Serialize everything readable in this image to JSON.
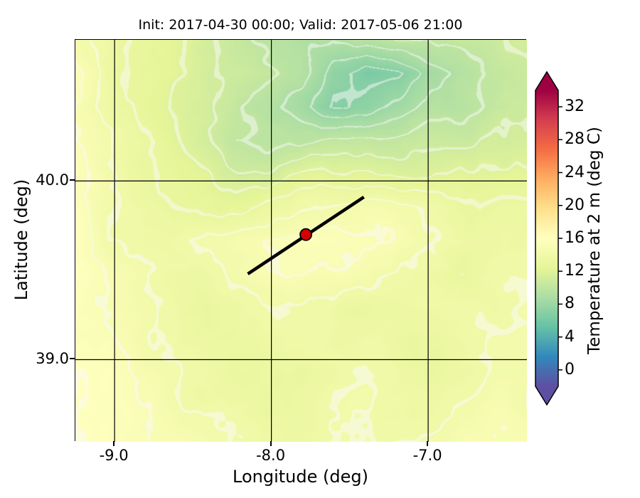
{
  "chart_data": {
    "type": "heatmap",
    "title": "Init: 2017-04-30 00:00; Valid: 2017-05-06 21:00",
    "xlabel": "Longitude (deg)",
    "ylabel": "Latitude (deg)",
    "xlim": [
      -9.25,
      -6.37
    ],
    "ylim": [
      38.54,
      40.79
    ],
    "xticks": [
      -9.0,
      -8.0,
      -7.0
    ],
    "xtick_labels": [
      "-9.0",
      "-8.0",
      "-7.0"
    ],
    "yticks": [
      39.0,
      40.0
    ],
    "ytick_labels": [
      "39.0",
      "40.0"
    ],
    "grid": true,
    "grid_color": "#000000",
    "colorbar": {
      "label": "Temperature at 2 m (deg C)",
      "ticks": [
        0,
        4,
        8,
        12,
        16,
        20,
        24,
        28,
        32
      ],
      "tick_labels": [
        "0",
        "4",
        "8",
        "12",
        "16",
        "20",
        "24",
        "28",
        "32"
      ],
      "vmin": -2,
      "vmax": 34,
      "extend": "both",
      "colormap": "Spectral_r",
      "colors": [
        "#5e4fa2",
        "#3288bd",
        "#66c2a5",
        "#abdda4",
        "#e6f598",
        "#ffffbf",
        "#fee08b",
        "#fdae61",
        "#f46d43",
        "#d53e4f",
        "#9e0142"
      ]
    },
    "cross_section_line": {
      "lon": [
        -8.15,
        -7.41
      ],
      "lat": [
        39.48,
        39.91
      ],
      "color": "#000000"
    },
    "marker": {
      "lon": -7.78,
      "lat": 39.7,
      "color": "#d40000"
    },
    "temperature_grid": {
      "units": "deg C",
      "lon_range": [
        -9.25,
        -6.37
      ],
      "lat_range": [
        40.79,
        38.54
      ],
      "values": [
        [
          14.7,
          13.7,
          12.7,
          12.2,
          11.2,
          10.2,
          9.7,
          9.2,
          9.2,
          9.7,
          10.2,
          10.2,
          10.7,
          10.7,
          11.2
        ],
        [
          15.2,
          13.7,
          12.7,
          12.2,
          11.2,
          10.7,
          10.2,
          9.2,
          7.2,
          6.2,
          6.7,
          8.2,
          9.2,
          10.2,
          10.7
        ],
        [
          15.2,
          13.7,
          12.7,
          11.7,
          11.2,
          10.2,
          9.2,
          8.2,
          6.7,
          7.2,
          8.2,
          9.2,
          9.7,
          10.2,
          10.7
        ],
        [
          15.2,
          14.2,
          13.2,
          12.2,
          11.2,
          10.2,
          9.7,
          9.7,
          10.2,
          10.2,
          10.2,
          10.7,
          10.7,
          11.2,
          11.2
        ],
        [
          15.7,
          14.2,
          13.2,
          12.7,
          12.2,
          11.2,
          11.2,
          12.2,
          12.2,
          12.2,
          11.7,
          11.7,
          12.2,
          12.2,
          12.2
        ],
        [
          15.7,
          14.2,
          13.7,
          13.2,
          12.7,
          12.7,
          13.2,
          13.7,
          14.2,
          14.7,
          14.2,
          13.7,
          13.2,
          13.2,
          13.2
        ],
        [
          15.7,
          14.2,
          13.7,
          13.7,
          14.2,
          14.7,
          15.2,
          15.7,
          15.7,
          15.2,
          14.7,
          14.2,
          13.7,
          13.7,
          13.7
        ],
        [
          15.7,
          14.7,
          14.2,
          13.7,
          13.7,
          14.2,
          14.7,
          15.2,
          14.7,
          14.2,
          13.7,
          13.7,
          13.2,
          13.7,
          13.7
        ],
        [
          15.7,
          14.7,
          14.2,
          13.7,
          13.2,
          13.2,
          13.7,
          13.7,
          13.7,
          13.2,
          13.2,
          13.7,
          13.7,
          13.7,
          14.2
        ],
        [
          15.7,
          15.2,
          14.2,
          13.7,
          13.2,
          13.2,
          13.2,
          13.7,
          13.7,
          13.7,
          13.2,
          13.2,
          13.7,
          14.2,
          14.2
        ],
        [
          16.2,
          15.7,
          14.7,
          14.2,
          13.7,
          13.2,
          13.2,
          13.2,
          13.7,
          14.2,
          13.7,
          13.2,
          13.7,
          14.2,
          14.2
        ],
        [
          16.2,
          15.7,
          15.2,
          14.2,
          13.7,
          13.7,
          13.2,
          13.7,
          14.2,
          14.2,
          13.7,
          13.7,
          14.2,
          14.7,
          14.2
        ],
        [
          16.2,
          15.7,
          15.2,
          14.7,
          14.2,
          13.7,
          13.7,
          13.7,
          14.2,
          14.2,
          14.2,
          14.2,
          14.7,
          14.7,
          14.7
        ]
      ]
    }
  }
}
